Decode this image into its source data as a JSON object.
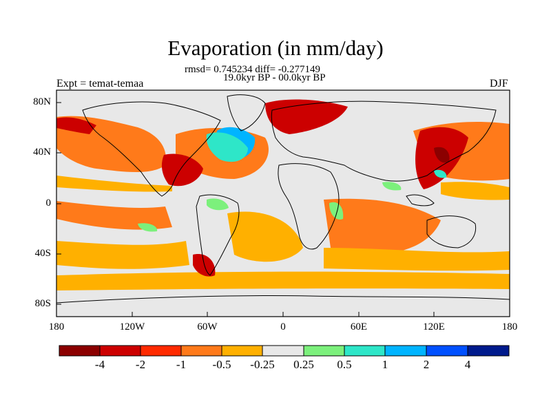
{
  "title": "Evaporation (in mm/day)",
  "stats_line": "rmsd= 0.745234 diff= -0.277149",
  "period_line": "19.0kyr BP - 00.0kyr BP",
  "left_label": "Expt = temat-temaa",
  "right_label": "DJF",
  "lat_ticks": [
    "80N",
    "40N",
    "0",
    "40S",
    "80S"
  ],
  "lon_ticks": [
    "180",
    "120W",
    "60W",
    "0",
    "60E",
    "120E",
    "180"
  ],
  "colorbar": {
    "labels": [
      "-4",
      "-2",
      "-1",
      "-0.5",
      "-0.25",
      "0.25",
      "0.5",
      "1",
      "2",
      "4"
    ],
    "colors": [
      "#8b0000",
      "#cc0000",
      "#ff2a00",
      "#ff7a1a",
      "#ffb000",
      "#e8e8e8",
      "#7cf07c",
      "#2ee6c8",
      "#00b4ff",
      "#0050ff",
      "#001a8c"
    ]
  },
  "map_colors": {
    "background": "#e8e8e8",
    "coast": "#000000"
  }
}
